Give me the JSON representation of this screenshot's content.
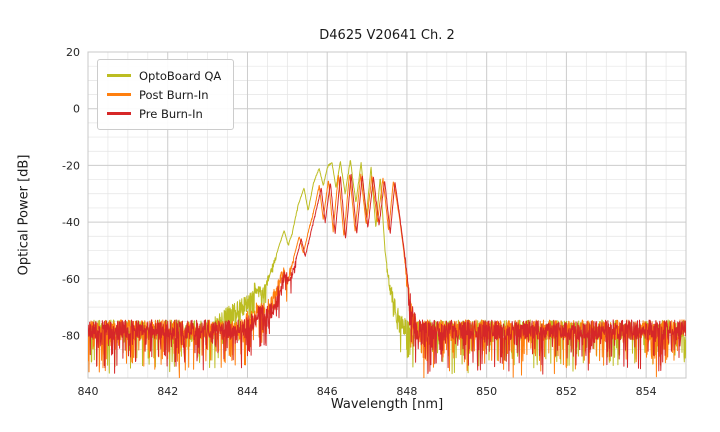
{
  "chart_data": {
    "type": "line",
    "title": "D4625 V20641 Ch. 2",
    "xlabel": "Wavelength [nm]",
    "ylabel": "Optical Power [dB]",
    "xlim": [
      840,
      855
    ],
    "ylim": [
      -95,
      20
    ],
    "x_major_ticks": [
      840,
      842,
      844,
      846,
      848,
      850,
      852,
      854
    ],
    "y_major_ticks": [
      20,
      0,
      -20,
      -40,
      -60,
      -80
    ],
    "x_minor_step": 0.5,
    "y_minor_step": 5,
    "grid": true,
    "legend_position": "upper left",
    "noise_floor_db": -78,
    "grid_major_color": "#cccccc",
    "grid_minor_color": "#e4e4e4",
    "series": [
      {
        "name": "OptoBoard QA",
        "color": "#bcbd22",
        "seed": 11,
        "noise": {
          "jitter": 3.5,
          "spike_prob": 0.17,
          "spike_depth": 13
        },
        "envelope": [
          [
            840,
            -78
          ],
          [
            843.1,
            -78
          ],
          [
            843.3,
            -75
          ],
          [
            843.55,
            -73
          ],
          [
            843.75,
            -71
          ],
          [
            843.95,
            -69
          ],
          [
            844.1,
            -66
          ],
          [
            844.2,
            -63
          ],
          [
            844.35,
            -66
          ],
          [
            844.5,
            -61
          ],
          [
            844.65,
            -55
          ],
          [
            844.8,
            -48
          ],
          [
            844.92,
            -43
          ],
          [
            845.02,
            -48
          ],
          [
            845.12,
            -44
          ],
          [
            845.27,
            -34
          ],
          [
            845.42,
            -28
          ],
          [
            845.52,
            -36
          ],
          [
            845.66,
            -26
          ],
          [
            845.8,
            -21
          ],
          [
            845.9,
            -27
          ],
          [
            846.02,
            -20
          ],
          [
            846.12,
            -19
          ],
          [
            846.22,
            -28
          ],
          [
            846.33,
            -18.5
          ],
          [
            846.45,
            -30
          ],
          [
            846.58,
            -18
          ],
          [
            846.72,
            -33
          ],
          [
            846.85,
            -19
          ],
          [
            846.98,
            -38
          ],
          [
            847.1,
            -20.5
          ],
          [
            847.22,
            -42
          ],
          [
            847.33,
            -24
          ],
          [
            847.45,
            -50
          ],
          [
            847.56,
            -62
          ],
          [
            847.7,
            -71
          ],
          [
            847.85,
            -76
          ],
          [
            848.0,
            -78
          ],
          [
            855,
            -78
          ]
        ]
      },
      {
        "name": "Post Burn-In",
        "color": "#ff7f0e",
        "seed": 23,
        "noise": {
          "jitter": 3.5,
          "spike_prob": 0.17,
          "spike_depth": 13
        },
        "envelope": [
          [
            840,
            -78
          ],
          [
            843.85,
            -78
          ],
          [
            844.05,
            -74
          ],
          [
            844.25,
            -71
          ],
          [
            844.45,
            -72
          ],
          [
            844.6,
            -68
          ],
          [
            844.75,
            -63
          ],
          [
            844.9,
            -57
          ],
          [
            845.0,
            -61
          ],
          [
            845.15,
            -53
          ],
          [
            845.3,
            -45
          ],
          [
            845.4,
            -51
          ],
          [
            845.55,
            -42
          ],
          [
            845.68,
            -35
          ],
          [
            845.8,
            -27
          ],
          [
            845.9,
            -39
          ],
          [
            846.03,
            -25
          ],
          [
            846.15,
            -43
          ],
          [
            846.28,
            -23
          ],
          [
            846.42,
            -45
          ],
          [
            846.56,
            -22.5
          ],
          [
            846.7,
            -43
          ],
          [
            846.84,
            -23
          ],
          [
            846.98,
            -41
          ],
          [
            847.12,
            -23.5
          ],
          [
            847.26,
            -40
          ],
          [
            847.4,
            -24.5
          ],
          [
            847.54,
            -43
          ],
          [
            847.66,
            -25.5
          ],
          [
            847.8,
            -37
          ],
          [
            847.92,
            -50
          ],
          [
            848.02,
            -63
          ],
          [
            848.12,
            -73
          ],
          [
            848.25,
            -78
          ],
          [
            855,
            -78
          ]
        ]
      },
      {
        "name": "Pre Burn-In",
        "color": "#d62728",
        "seed": 37,
        "noise": {
          "jitter": 3.5,
          "spike_prob": 0.17,
          "spike_depth": 13
        },
        "envelope": [
          [
            840,
            -78
          ],
          [
            843.9,
            -78
          ],
          [
            844.1,
            -75
          ],
          [
            844.3,
            -72
          ],
          [
            844.5,
            -73
          ],
          [
            844.65,
            -69
          ],
          [
            844.8,
            -64
          ],
          [
            844.95,
            -58
          ],
          [
            845.05,
            -62
          ],
          [
            845.2,
            -54
          ],
          [
            845.35,
            -46
          ],
          [
            845.45,
            -52
          ],
          [
            845.6,
            -43
          ],
          [
            845.72,
            -36
          ],
          [
            845.85,
            -28
          ],
          [
            845.95,
            -40
          ],
          [
            846.08,
            -26
          ],
          [
            846.2,
            -44
          ],
          [
            846.33,
            -23.5
          ],
          [
            846.46,
            -46
          ],
          [
            846.6,
            -23
          ],
          [
            846.74,
            -44
          ],
          [
            846.88,
            -23.5
          ],
          [
            847.02,
            -42
          ],
          [
            847.16,
            -24
          ],
          [
            847.3,
            -41
          ],
          [
            847.44,
            -25
          ],
          [
            847.58,
            -44
          ],
          [
            847.7,
            -26
          ],
          [
            847.82,
            -38
          ],
          [
            847.95,
            -52
          ],
          [
            848.05,
            -65
          ],
          [
            848.15,
            -74
          ],
          [
            848.3,
            -78
          ],
          [
            855,
            -78
          ]
        ]
      }
    ]
  },
  "legend": {
    "entries": [
      "OptoBoard QA",
      "Post Burn-In",
      "Pre Burn-In"
    ]
  }
}
